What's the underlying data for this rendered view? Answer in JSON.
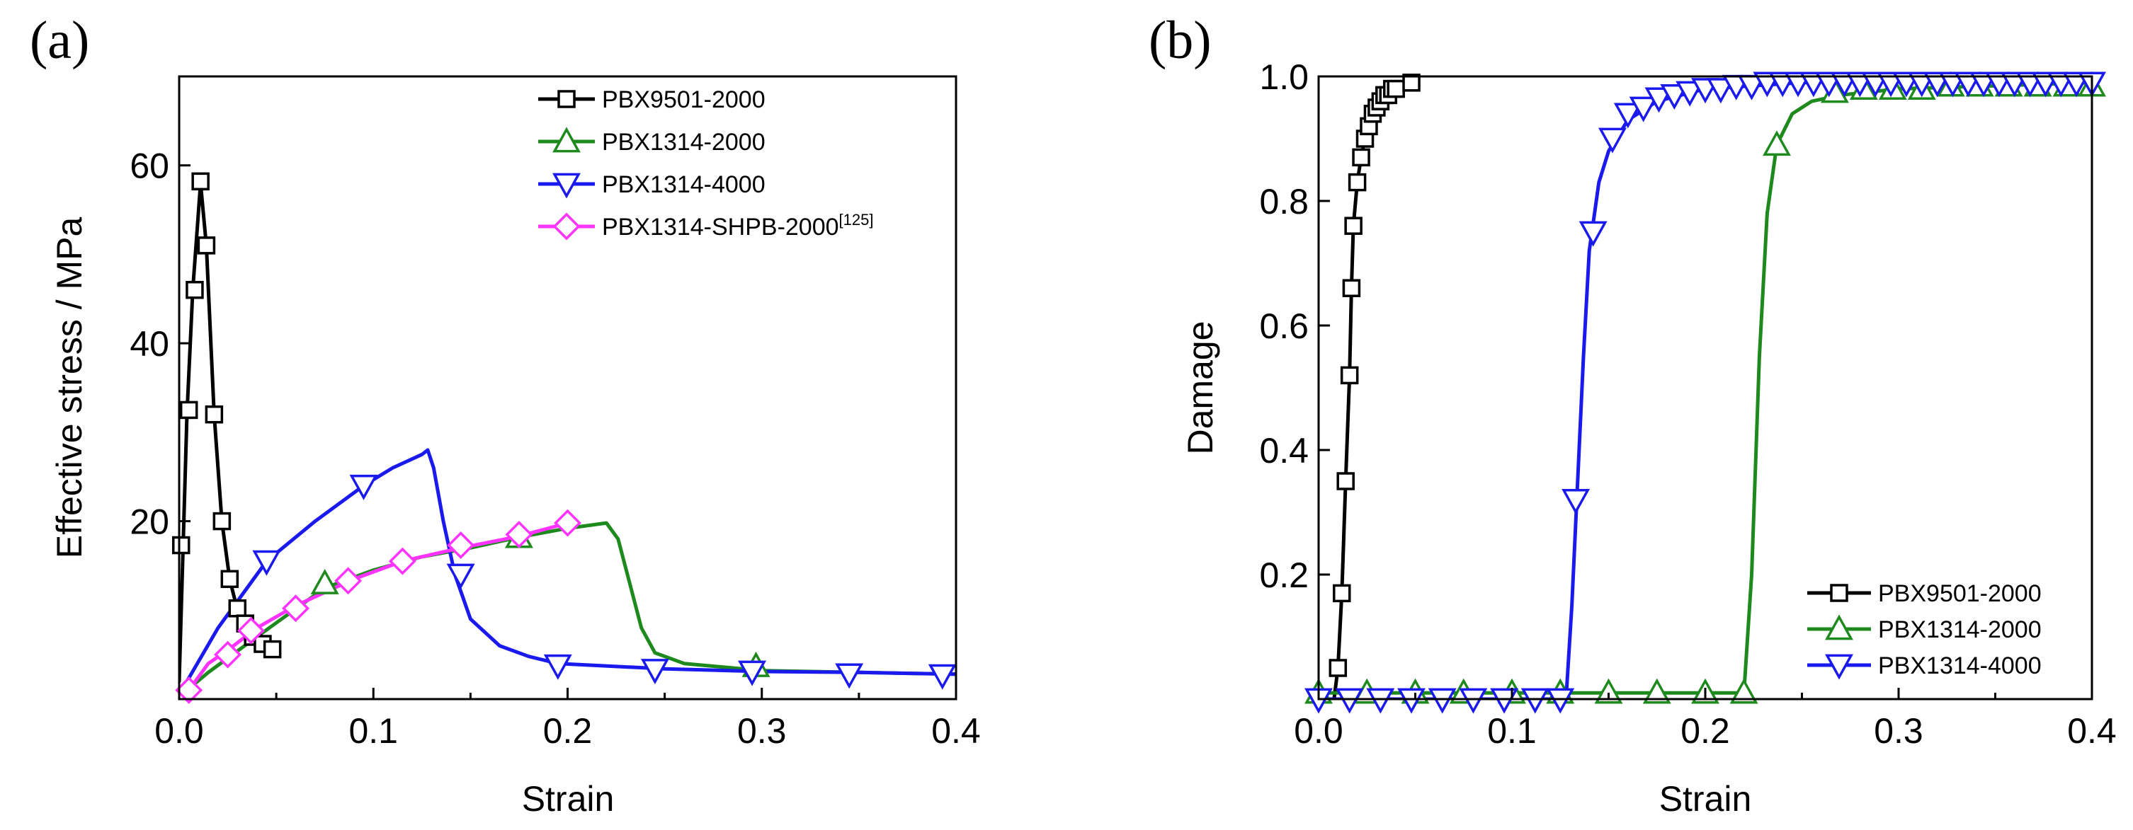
{
  "chart_data": [
    {
      "panel": "(a)",
      "type": "line",
      "xlabel": "Strain",
      "ylabel": "Effective stress / MPa",
      "xlim": [
        0,
        0.4
      ],
      "ylim": [
        0,
        70
      ],
      "xticks": [
        0.0,
        0.1,
        0.2,
        0.3,
        0.4
      ],
      "xtick_labels": [
        "0.0",
        "0.1",
        "0.2",
        "0.3",
        "0.4"
      ],
      "yticks": [
        20,
        40,
        60
      ],
      "ytick_labels": [
        "20",
        "40",
        "60"
      ],
      "legend_position": "top-right",
      "series": [
        {
          "name": "PBX9501-2000",
          "color": "#000000",
          "marker": "square",
          "line": [
            [
              0,
              2
            ],
            [
              0.002,
              17
            ],
            [
              0.004,
              32
            ],
            [
              0.007,
              46
            ],
            [
              0.011,
              58
            ],
            [
              0.014,
              51
            ],
            [
              0.018,
              32
            ],
            [
              0.022,
              20
            ],
            [
              0.026,
              13.5
            ],
            [
              0.03,
              10
            ],
            [
              0.035,
              8.5
            ],
            [
              0.039,
              7
            ],
            [
              0.043,
              6.3
            ],
            [
              0.048,
              5.6
            ]
          ],
          "markers": [
            [
              0.001,
              17.3
            ],
            [
              0.005,
              32.5
            ],
            [
              0.008,
              46
            ],
            [
              0.011,
              58.2
            ],
            [
              0.014,
              51
            ],
            [
              0.018,
              32
            ],
            [
              0.022,
              20
            ],
            [
              0.026,
              13.5
            ],
            [
              0.03,
              10.2
            ],
            [
              0.034,
              8.5
            ],
            [
              0.038,
              7
            ],
            [
              0.043,
              6.2
            ],
            [
              0.048,
              5.6
            ]
          ]
        },
        {
          "name": "PBX1314-2000",
          "color": "#1e8a1e",
          "marker": "triangle-up",
          "line": [
            [
              0.004,
              1
            ],
            [
              0.015,
              3
            ],
            [
              0.04,
              7
            ],
            [
              0.075,
              12.5
            ],
            [
              0.1,
              14.5
            ],
            [
              0.125,
              16
            ],
            [
              0.15,
              17
            ],
            [
              0.175,
              18.2
            ],
            [
              0.2,
              19.2
            ],
            [
              0.22,
              19.8
            ],
            [
              0.226,
              18
            ],
            [
              0.232,
              13
            ],
            [
              0.238,
              8
            ],
            [
              0.245,
              5.2
            ],
            [
              0.26,
              4
            ],
            [
              0.3,
              3.2
            ],
            [
              0.35,
              3
            ],
            [
              0.4,
              2.8
            ]
          ],
          "markers": [
            [
              0.075,
              13
            ],
            [
              0.175,
              18.2
            ],
            [
              0.297,
              3.7
            ]
          ]
        },
        {
          "name": "PBX1314-4000",
          "color": "#1a1aee",
          "marker": "triangle-down",
          "line": [
            [
              0.004,
              2
            ],
            [
              0.02,
              8
            ],
            [
              0.045,
              15.5
            ],
            [
              0.07,
              20
            ],
            [
              0.095,
              24
            ],
            [
              0.11,
              26
            ],
            [
              0.125,
              27.5
            ],
            [
              0.128,
              28
            ],
            [
              0.131,
              26
            ],
            [
              0.136,
              20
            ],
            [
              0.142,
              14
            ],
            [
              0.15,
              9
            ],
            [
              0.165,
              6
            ],
            [
              0.18,
              4.8
            ],
            [
              0.195,
              4
            ],
            [
              0.25,
              3.4
            ],
            [
              0.3,
              3.1
            ],
            [
              0.35,
              3
            ],
            [
              0.4,
              2.8
            ]
          ],
          "markers": [
            [
              0.045,
              15.5
            ],
            [
              0.095,
              24
            ],
            [
              0.145,
              14
            ],
            [
              0.195,
              3.8
            ],
            [
              0.245,
              3.3
            ],
            [
              0.295,
              3.1
            ],
            [
              0.345,
              2.8
            ],
            [
              0.393,
              2.7
            ]
          ]
        },
        {
          "name": "PBX1314-SHPB-2000",
          "name_superscript": "[125]",
          "color": "#ff33ff",
          "marker": "diamond",
          "line": [
            [
              0.005,
              1
            ],
            [
              0.015,
              4
            ],
            [
              0.025,
              5.5
            ],
            [
              0.04,
              8
            ],
            [
              0.06,
              10.5
            ],
            [
              0.09,
              13.5
            ],
            [
              0.115,
              15.5
            ],
            [
              0.145,
              17
            ],
            [
              0.175,
              18.3
            ],
            [
              0.2,
              19.8
            ]
          ],
          "markers": [
            [
              0.005,
              1
            ],
            [
              0.025,
              5
            ],
            [
              0.037,
              7.7
            ],
            [
              0.06,
              10.2
            ],
            [
              0.087,
              13.3
            ],
            [
              0.115,
              15.5
            ],
            [
              0.145,
              17.3
            ],
            [
              0.175,
              18.5
            ],
            [
              0.2,
              19.8
            ]
          ]
        }
      ]
    },
    {
      "panel": "(b)",
      "type": "line",
      "xlabel": "Strain",
      "ylabel": "Damage",
      "xlim": [
        0,
        0.4
      ],
      "ylim": [
        0,
        1.0
      ],
      "xticks": [
        0.0,
        0.1,
        0.2,
        0.3,
        0.4
      ],
      "xtick_labels": [
        "0.0",
        "0.1",
        "0.2",
        "0.3",
        "0.4"
      ],
      "yticks": [
        0.2,
        0.4,
        0.6,
        0.8,
        1.0
      ],
      "ytick_labels": [
        "0.2",
        "0.4",
        "0.6",
        "0.8",
        "1.0"
      ],
      "legend_position": "bottom-right",
      "series": [
        {
          "name": "PBX9501-2000",
          "color": "#000000",
          "marker": "square",
          "line": [
            [
              0.008,
              0.0
            ],
            [
              0.01,
              0.05
            ],
            [
              0.012,
              0.17
            ],
            [
              0.014,
              0.35
            ],
            [
              0.016,
              0.52
            ],
            [
              0.017,
              0.66
            ],
            [
              0.018,
              0.76
            ],
            [
              0.02,
              0.83
            ],
            [
              0.022,
              0.87
            ],
            [
              0.024,
              0.9
            ],
            [
              0.027,
              0.93
            ],
            [
              0.03,
              0.95
            ],
            [
              0.035,
              0.97
            ],
            [
              0.04,
              0.98
            ],
            [
              0.048,
              0.99
            ]
          ],
          "markers": [
            [
              0.01,
              0.05
            ],
            [
              0.012,
              0.17
            ],
            [
              0.014,
              0.35
            ],
            [
              0.016,
              0.52
            ],
            [
              0.017,
              0.66
            ],
            [
              0.018,
              0.76
            ],
            [
              0.02,
              0.83
            ],
            [
              0.022,
              0.87
            ],
            [
              0.024,
              0.9
            ],
            [
              0.026,
              0.92
            ],
            [
              0.028,
              0.94
            ],
            [
              0.03,
              0.95
            ],
            [
              0.032,
              0.96
            ],
            [
              0.034,
              0.97
            ],
            [
              0.036,
              0.97
            ],
            [
              0.038,
              0.98
            ],
            [
              0.04,
              0.98
            ],
            [
              0.048,
              0.99
            ]
          ]
        },
        {
          "name": "PBX1314-2000",
          "color": "#1e8a1e",
          "marker": "triangle-up",
          "line": [
            [
              0.0,
              0.01
            ],
            [
              0.22,
              0.01
            ],
            [
              0.224,
              0.2
            ],
            [
              0.228,
              0.55
            ],
            [
              0.232,
              0.78
            ],
            [
              0.237,
              0.89
            ],
            [
              0.245,
              0.94
            ],
            [
              0.255,
              0.96
            ],
            [
              0.27,
              0.97
            ],
            [
              0.3,
              0.98
            ],
            [
              0.35,
              0.985
            ],
            [
              0.4,
              0.99
            ]
          ],
          "markers": [
            [
              0.0,
              0.01
            ],
            [
              0.025,
              0.01
            ],
            [
              0.05,
              0.01
            ],
            [
              0.075,
              0.01
            ],
            [
              0.1,
              0.01
            ],
            [
              0.125,
              0.01
            ],
            [
              0.15,
              0.01
            ],
            [
              0.175,
              0.01
            ],
            [
              0.2,
              0.01
            ],
            [
              0.22,
              0.01
            ],
            [
              0.237,
              0.89
            ],
            [
              0.267,
              0.975
            ],
            [
              0.282,
              0.98
            ],
            [
              0.297,
              0.98
            ],
            [
              0.312,
              0.98
            ],
            [
              0.327,
              0.985
            ],
            [
              0.342,
              0.985
            ],
            [
              0.357,
              0.985
            ],
            [
              0.372,
              0.985
            ],
            [
              0.387,
              0.985
            ],
            [
              0.4,
              0.985
            ]
          ]
        },
        {
          "name": "PBX1314-4000",
          "color": "#1a1aee",
          "marker": "triangle-down",
          "line": [
            [
              0.0,
              0.0
            ],
            [
              0.128,
              0.0
            ],
            [
              0.131,
              0.15
            ],
            [
              0.134,
              0.35
            ],
            [
              0.137,
              0.55
            ],
            [
              0.14,
              0.72
            ],
            [
              0.145,
              0.83
            ],
            [
              0.15,
              0.88
            ],
            [
              0.16,
              0.93
            ],
            [
              0.175,
              0.96
            ],
            [
              0.2,
              0.98
            ],
            [
              0.25,
              0.99
            ],
            [
              0.3,
              0.995
            ],
            [
              0.4,
              0.995
            ]
          ],
          "markers": [
            [
              0.0,
              0.0
            ],
            [
              0.016,
              0.0
            ],
            [
              0.032,
              0.0
            ],
            [
              0.048,
              0.0
            ],
            [
              0.064,
              0.0
            ],
            [
              0.08,
              0.0
            ],
            [
              0.096,
              0.0
            ],
            [
              0.112,
              0.0
            ],
            [
              0.125,
              0.0
            ],
            [
              0.133,
              0.32
            ],
            [
              0.142,
              0.75
            ],
            [
              0.152,
              0.9
            ],
            [
              0.16,
              0.94
            ],
            [
              0.168,
              0.95
            ],
            [
              0.176,
              0.965
            ],
            [
              0.184,
              0.97
            ],
            [
              0.192,
              0.975
            ],
            [
              0.2,
              0.98
            ],
            [
              0.208,
              0.98
            ],
            [
              0.216,
              0.985
            ],
            [
              0.224,
              0.985
            ],
            [
              0.232,
              0.99
            ],
            [
              0.24,
              0.99
            ],
            [
              0.248,
              0.99
            ],
            [
              0.256,
              0.99
            ],
            [
              0.264,
              0.99
            ],
            [
              0.272,
              0.99
            ],
            [
              0.28,
              0.99
            ],
            [
              0.288,
              0.99
            ],
            [
              0.296,
              0.99
            ],
            [
              0.304,
              0.99
            ],
            [
              0.312,
              0.99
            ],
            [
              0.32,
              0.99
            ],
            [
              0.328,
              0.99
            ],
            [
              0.336,
              0.99
            ],
            [
              0.344,
              0.99
            ],
            [
              0.352,
              0.99
            ],
            [
              0.36,
              0.99
            ],
            [
              0.368,
              0.99
            ],
            [
              0.376,
              0.99
            ],
            [
              0.384,
              0.99
            ],
            [
              0.392,
              0.99
            ],
            [
              0.4,
              0.99
            ]
          ]
        }
      ]
    }
  ]
}
